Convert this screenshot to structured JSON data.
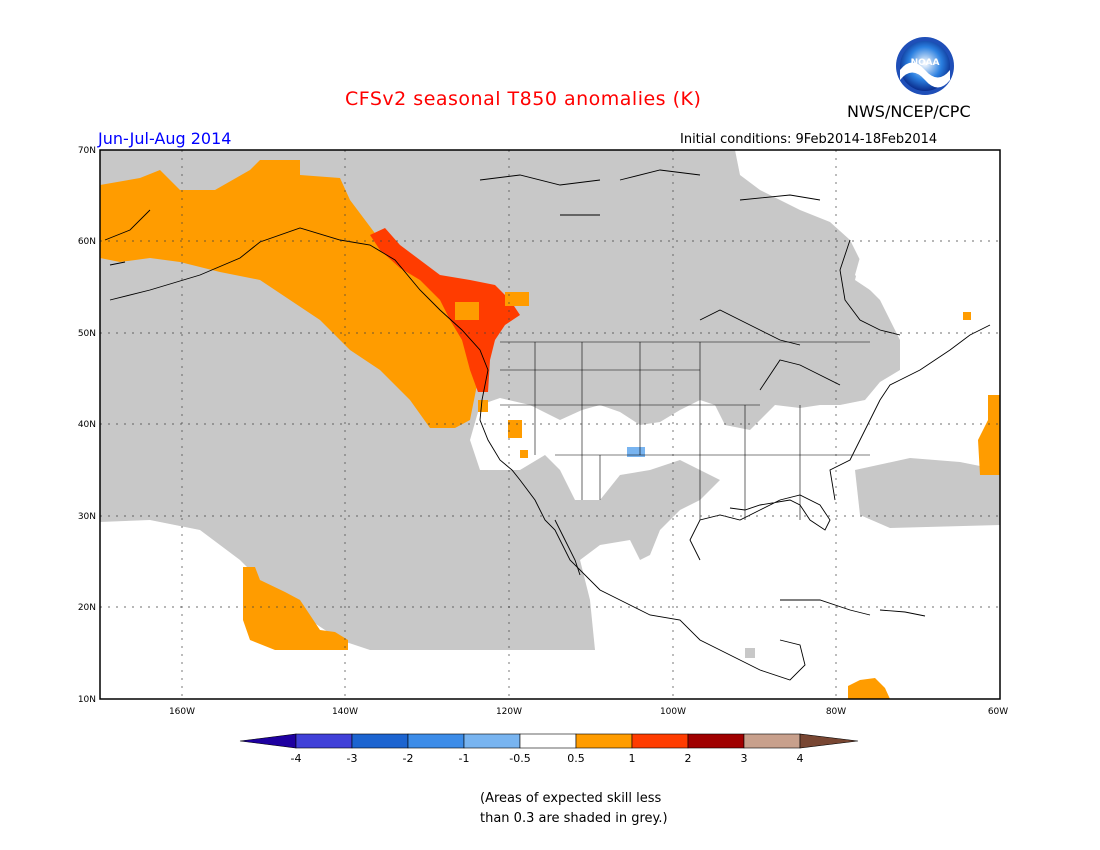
{
  "title": "CFSv2 seasonal T850 anomalies (K)",
  "agency": "NWS/NCEP/CPC",
  "logo_text": "NOAA",
  "season": "Jun-Jul-Aug 2014",
  "initial_conditions": "Initial conditions: 9Feb2014-18Feb2014",
  "note_line1": "(Areas of expected skill less",
  "note_line2": "than 0.3 are shaded in grey.)",
  "map": {
    "lat_ticks": [
      "70N",
      "60N",
      "50N",
      "40N",
      "30N",
      "20N",
      "10N"
    ],
    "lon_ticks": [
      "160W",
      "140W",
      "120W",
      "100W",
      "80W",
      "60W"
    ],
    "colors": {
      "skill_grey": "#c8c8c8",
      "land_line": "#000000"
    },
    "anomaly_regions": [
      {
        "name": "alaska-anomaly",
        "category": "0.5 to 1",
        "color": "#ff9c00"
      },
      {
        "name": "pacific-northwest-anomaly",
        "category": "1 to 2",
        "color": "#ff3c00"
      },
      {
        "name": "hawaii-anomaly",
        "category": "0.5 to 1",
        "color": "#ff9c00"
      },
      {
        "name": "atlantic-anomaly",
        "category": "0.5 to 1",
        "color": "#ff9c00"
      },
      {
        "name": "caribbean-anomaly",
        "category": "0.5 to 1",
        "color": "#ff9c00"
      },
      {
        "name": "colorado-cool-anomaly",
        "category": "-1 to -0.5",
        "color": "#78b4f0"
      }
    ]
  },
  "colorbar": {
    "labels": [
      "-4",
      "-3",
      "-2",
      "-1",
      "-0.5",
      "0.5",
      "1",
      "2",
      "3",
      "4"
    ],
    "colors": [
      "#1e00a0",
      "#4040d8",
      "#1c64d0",
      "#3c8ce8",
      "#78b4f0",
      "#ffffff",
      "#ff9c00",
      "#ff3c00",
      "#a00000",
      "#c8a08c",
      "#784632"
    ]
  }
}
